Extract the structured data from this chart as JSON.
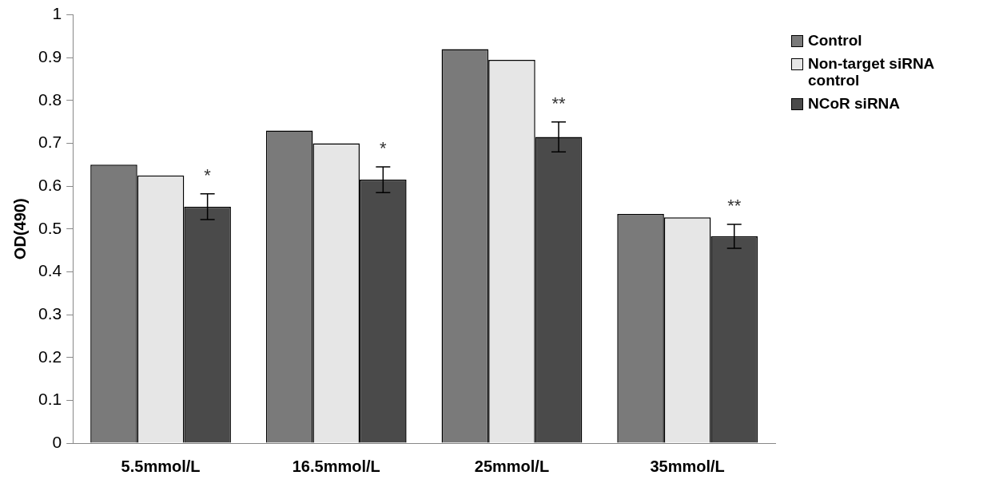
{
  "chart_data": {
    "type": "bar",
    "ylabel": "OD(490)",
    "categories": [
      "5.5mmol/L",
      "16.5mmol/L",
      "25mmol/L",
      "35mmol/L"
    ],
    "series": [
      {
        "name": "Control",
        "color": "#7a7a7a",
        "values": [
          0.65,
          0.73,
          0.92,
          0.535
        ]
      },
      {
        "name": "Non-target siRNA control",
        "color": "#e6e6e6",
        "values": [
          0.625,
          0.7,
          0.895,
          0.527
        ]
      },
      {
        "name": "NCoR siRNA",
        "color": "#4a4a4a",
        "values": [
          0.552,
          0.615,
          0.715,
          0.483
        ],
        "errors": [
          0.03,
          0.03,
          0.035,
          0.028
        ]
      }
    ],
    "ylim": [
      0,
      1
    ],
    "yticks": [
      0,
      0.1,
      0.2,
      0.3,
      0.4,
      0.5,
      0.6,
      0.7,
      0.8,
      0.9,
      1
    ],
    "grid": false,
    "legend": "top right",
    "annotations": [
      "*",
      "*",
      "**",
      "**"
    ]
  }
}
